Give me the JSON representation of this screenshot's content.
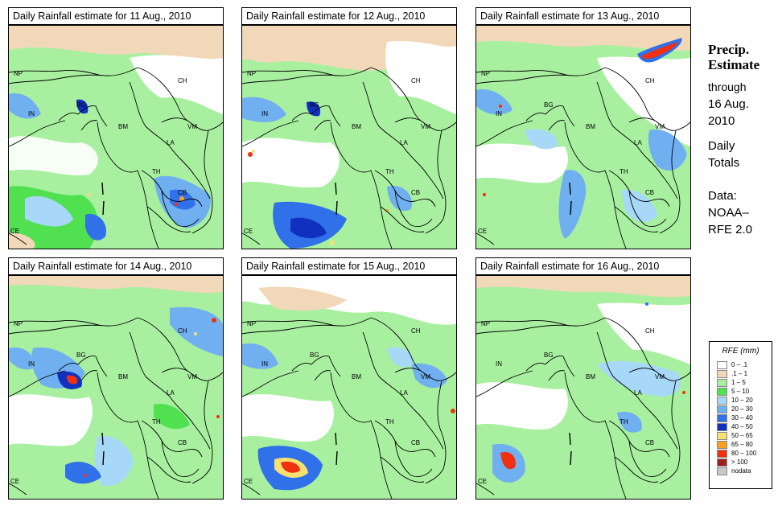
{
  "panels": [
    {
      "title": "Daily Rainfall estimate for  11 Aug., 2010"
    },
    {
      "title": "Daily Rainfall estimate for  12 Aug., 2010"
    },
    {
      "title": "Daily Rainfall estimate for  13 Aug., 2010"
    },
    {
      "title": "Daily Rainfall estimate for  14 Aug., 2010"
    },
    {
      "title": "Daily Rainfall estimate for  15 Aug., 2010"
    },
    {
      "title": "Daily Rainfall estimate for  16 Aug., 2010"
    }
  ],
  "map_labels": {
    "np": "NP",
    "in": "IN",
    "bg": "BG",
    "bm": "BM",
    "ch": "CH",
    "vm": "VM",
    "la": "LA",
    "th": "TH",
    "cb": "CB",
    "ce": "CE"
  },
  "side": {
    "title_line1": "Precip.",
    "title_line2": "Estimate",
    "through": "through",
    "date_line1": "16 Aug.",
    "date_line2": "2010",
    "totals_line1": "Daily",
    "totals_line2": "Totals",
    "data_line1": "Data:",
    "data_line2": "NOAA–",
    "data_line3": "RFE 2.0"
  },
  "legend": {
    "title": "RFE (mm)",
    "items": [
      {
        "label": "0 – .1",
        "color": "#ffffff"
      },
      {
        "label": ".1 – 1",
        "color": "#f0d8b8"
      },
      {
        "label": "1 – 5",
        "color": "#a8f0a0"
      },
      {
        "label": "5 – 10",
        "color": "#50e050"
      },
      {
        "label": "10 – 20",
        "color": "#a8d8f8"
      },
      {
        "label": "20 – 30",
        "color": "#70b0f0"
      },
      {
        "label": "30 – 40",
        "color": "#3070e8"
      },
      {
        "label": "40 – 50",
        "color": "#1030c0"
      },
      {
        "label": "50 – 65",
        "color": "#f8e070"
      },
      {
        "label": "65 – 80",
        "color": "#f8a020"
      },
      {
        "label": "80 – 100",
        "color": "#f03010"
      },
      {
        "label": "> 100",
        "color": "#a02020"
      },
      {
        "label": "nodata",
        "color": "#c8c8c8"
      }
    ]
  }
}
